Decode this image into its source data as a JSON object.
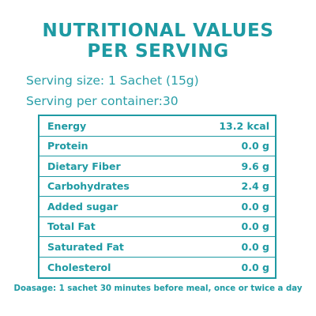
{
  "title": {
    "line1": "NUTRITIONAL VALUES",
    "line2": "PER SERVING"
  },
  "serving": {
    "size": "Serving size: 1 Sachet (15g)",
    "per_container": "Serving per container:30"
  },
  "table": {
    "rows": [
      {
        "label": "Energy",
        "value": "13.2 kcal"
      },
      {
        "label": "Protein",
        "value": "0.0 g"
      },
      {
        "label": "Dietary Fiber",
        "value": "9.6 g"
      },
      {
        "label": "Carbohydrates",
        "value": "2.4 g"
      },
      {
        "label": "Added sugar",
        "value": "0.0 g"
      },
      {
        "label": "Total Fat",
        "value": "0.0 g"
      },
      {
        "label": "Saturated Fat",
        "value": "0.0 g"
      },
      {
        "label": "Cholesterol",
        "value": "0.0 g"
      }
    ]
  },
  "dosage": "Doasage: 1 sachet 30 minutes before meal, once or twice a day",
  "colors": {
    "accent": "#1e9aa3",
    "background": "#ffffff"
  }
}
